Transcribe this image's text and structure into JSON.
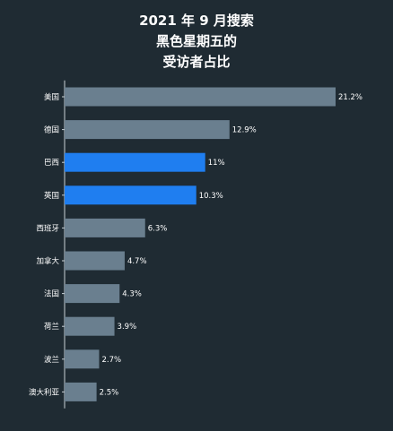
{
  "title_lines": [
    "2021 年 9 月搜索",
    "黑色星期五的",
    "受访者占比"
  ],
  "colors": {
    "background": "#1f2b33",
    "bar_default": "#6a7f8f",
    "bar_highlight": "#1f7ef0",
    "axis": "#c8d0d6",
    "text": "#ffffff"
  },
  "chart_data": {
    "type": "bar",
    "orientation": "horizontal",
    "title": "2021 年 9 月搜索黑色星期五的受访者占比",
    "categories": [
      "美国",
      "德国",
      "巴西",
      "英国",
      "西班牙",
      "加拿大",
      "法国",
      "荷兰",
      "波兰",
      "澳大利亚"
    ],
    "values": [
      21.2,
      12.9,
      11,
      10.3,
      6.3,
      4.7,
      4.3,
      3.9,
      2.7,
      2.5
    ],
    "value_labels": [
      "21.2%",
      "12.9%",
      "11%",
      "10.3%",
      "6.3%",
      "4.7%",
      "4.3%",
      "3.9%",
      "2.7%",
      "2.5%"
    ],
    "highlighted": [
      false,
      false,
      true,
      true,
      false,
      false,
      false,
      false,
      false,
      false
    ],
    "xlim": [
      0,
      21.2
    ],
    "grid": false,
    "legend": "none"
  }
}
